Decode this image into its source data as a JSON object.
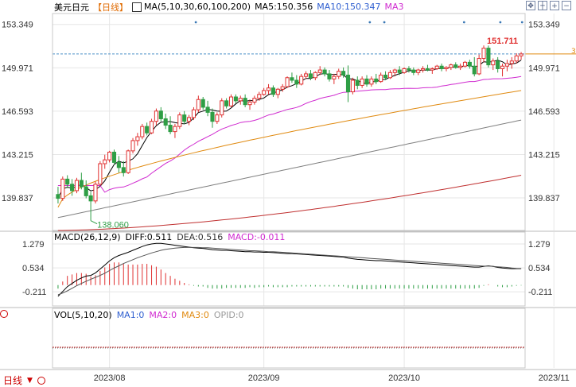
{
  "header": {
    "symbol": "美元日元",
    "period_tag": "【日线】",
    "ma_label": "MA(5,10,30,60,100,200)",
    "ma5": "MA5:150.356",
    "ma10": "MA10:150.347",
    "ma3": "MA3"
  },
  "toolbar": {
    "icons": [
      "move-icon",
      "crosshair-icon",
      "zoom-in-icon",
      "zoom-out-icon"
    ],
    "glyphs": [
      "✥",
      "┼",
      "+",
      "−"
    ]
  },
  "macd_legend": {
    "label": "MACD(26,12,9)",
    "diff": "DIFF:0.511",
    "dea": "DEA:0.516",
    "macd": "MACD:-0.011"
  },
  "vol_legend": {
    "label": "VOL(5,10,20)",
    "ma1": "MA1:0",
    "ma2": "MA2:0",
    "ma3": "MA3:0",
    "opid": "OPID:0"
  },
  "period_switch": {
    "label": "日线",
    "arrow": "▼"
  },
  "colors": {
    "up": "#e03030",
    "down": "#2e9e45",
    "ma5": "#000000",
    "ma30": "#d02bd0",
    "ma60": "#e08a10",
    "ma100": "#808080",
    "ma200": "#c03030",
    "grid": "#e6e6e6",
    "axis": "#333333",
    "current": "#4a90c8"
  },
  "chart_data": [
    {
      "type": "candlestick",
      "title": "",
      "y_ticks": [
        "153.349",
        "149.971",
        "146.593",
        "143.215",
        "139.837"
      ],
      "y_tick_values": [
        153.349,
        149.971,
        146.593,
        143.215,
        139.837
      ],
      "ylim": [
        137.3,
        154.2
      ],
      "x_ticks": [
        "2023/08",
        "2023/09",
        "2023/10",
        "2023/11"
      ],
      "x_tick_index": [
        11,
        44,
        74,
        106
      ],
      "annotations": {
        "high": "151.711",
        "low": "138.060",
        "current_price": 151.05,
        "current_label": "3"
      },
      "ohlc": [
        [
          140.1,
          140.7,
          139.4,
          139.8
        ],
        [
          139.8,
          141.5,
          139.6,
          141.3
        ],
        [
          141.3,
          141.6,
          140.6,
          140.9
        ],
        [
          140.9,
          141.3,
          140.0,
          140.4
        ],
        [
          140.4,
          141.4,
          140.2,
          141.2
        ],
        [
          141.2,
          141.8,
          140.5,
          140.7
        ],
        [
          140.7,
          141.2,
          139.8,
          140.0
        ],
        [
          140.0,
          140.3,
          138.06,
          139.6
        ],
        [
          139.6,
          141.1,
          139.4,
          140.9
        ],
        [
          140.9,
          142.7,
          140.8,
          142.5
        ],
        [
          142.5,
          143.2,
          142.1,
          142.8
        ],
        [
          142.8,
          143.5,
          142.6,
          143.4
        ],
        [
          143.4,
          143.6,
          142.4,
          142.6
        ],
        [
          142.6,
          143.1,
          141.8,
          142.2
        ],
        [
          142.2,
          142.7,
          141.5,
          141.8
        ],
        [
          141.8,
          143.6,
          141.7,
          143.5
        ],
        [
          143.5,
          144.5,
          143.3,
          144.3
        ],
        [
          144.3,
          144.9,
          143.9,
          144.6
        ],
        [
          144.6,
          145.6,
          144.4,
          145.4
        ],
        [
          145.4,
          145.7,
          144.7,
          144.9
        ],
        [
          144.9,
          146.0,
          144.8,
          145.8
        ],
        [
          145.8,
          146.8,
          145.5,
          146.6
        ],
        [
          146.6,
          146.9,
          145.8,
          146.0
        ],
        [
          146.0,
          146.4,
          145.2,
          145.5
        ],
        [
          145.5,
          146.2,
          144.8,
          145.0
        ],
        [
          145.0,
          145.6,
          144.5,
          145.4
        ],
        [
          145.4,
          146.5,
          145.2,
          146.3
        ],
        [
          146.3,
          146.6,
          145.6,
          145.8
        ],
        [
          145.8,
          146.3,
          145.5,
          146.1
        ],
        [
          146.1,
          146.9,
          145.9,
          146.7
        ],
        [
          146.7,
          147.8,
          146.5,
          147.5
        ],
        [
          147.5,
          147.7,
          146.7,
          146.9
        ],
        [
          146.9,
          147.4,
          146.2,
          146.5
        ],
        [
          146.5,
          146.8,
          145.3,
          145.8
        ],
        [
          145.8,
          146.5,
          145.6,
          146.3
        ],
        [
          146.3,
          147.6,
          146.1,
          147.4
        ],
        [
          147.4,
          147.6,
          146.8,
          147.0
        ],
        [
          147.0,
          147.9,
          146.9,
          147.7
        ],
        [
          147.7,
          147.9,
          147.2,
          147.4
        ],
        [
          147.4,
          147.8,
          147.1,
          147.6
        ],
        [
          147.6,
          147.9,
          146.9,
          147.1
        ],
        [
          147.1,
          147.5,
          146.7,
          147.3
        ],
        [
          147.3,
          147.8,
          147.1,
          147.6
        ],
        [
          147.6,
          148.1,
          147.4,
          147.9
        ],
        [
          147.9,
          148.4,
          147.8,
          148.2
        ],
        [
          148.2,
          148.7,
          147.9,
          148.4
        ],
        [
          148.4,
          148.6,
          147.7,
          147.9
        ],
        [
          147.9,
          148.4,
          147.6,
          148.3
        ],
        [
          148.3,
          148.7,
          148.1,
          148.5
        ],
        [
          148.5,
          149.3,
          148.4,
          149.2
        ],
        [
          149.2,
          149.6,
          148.8,
          149.0
        ],
        [
          149.0,
          149.4,
          148.4,
          148.7
        ],
        [
          148.7,
          149.5,
          148.6,
          149.3
        ],
        [
          149.3,
          149.7,
          149.1,
          149.5
        ],
        [
          149.5,
          149.8,
          149.0,
          149.2
        ],
        [
          149.2,
          149.7,
          149.0,
          149.6
        ],
        [
          149.6,
          150.1,
          149.4,
          149.8
        ],
        [
          149.8,
          150.0,
          149.3,
          149.5
        ],
        [
          149.5,
          149.8,
          148.9,
          149.1
        ],
        [
          149.1,
          149.5,
          148.7,
          149.3
        ],
        [
          149.3,
          149.9,
          149.1,
          149.7
        ],
        [
          149.7,
          150.0,
          149.2,
          149.4
        ],
        [
          149.4,
          150.15,
          147.3,
          148.1
        ],
        [
          148.1,
          149.2,
          147.9,
          149.0
        ],
        [
          149.0,
          149.3,
          148.3,
          148.6
        ],
        [
          148.6,
          149.3,
          148.4,
          149.1
        ],
        [
          149.1,
          149.4,
          148.5,
          148.7
        ],
        [
          148.7,
          149.3,
          148.5,
          149.1
        ],
        [
          149.1,
          149.5,
          148.7,
          148.9
        ],
        [
          148.9,
          149.6,
          148.8,
          149.4
        ],
        [
          149.4,
          149.7,
          149.0,
          149.2
        ],
        [
          149.2,
          149.8,
          149.1,
          149.6
        ],
        [
          149.6,
          149.9,
          149.3,
          149.8
        ],
        [
          149.8,
          150.1,
          149.4,
          149.6
        ],
        [
          149.6,
          150.0,
          149.5,
          149.9
        ],
        [
          149.9,
          150.1,
          149.6,
          149.8
        ],
        [
          149.8,
          150.0,
          149.4,
          149.6
        ],
        [
          149.6,
          149.9,
          149.4,
          149.8
        ],
        [
          149.8,
          150.1,
          149.6,
          149.9
        ],
        [
          149.9,
          150.2,
          149.7,
          149.8
        ],
        [
          149.8,
          150.0,
          149.5,
          149.9
        ],
        [
          149.9,
          150.2,
          149.8,
          150.1
        ],
        [
          150.1,
          150.3,
          149.7,
          149.9
        ],
        [
          149.9,
          150.1,
          149.7,
          150.0
        ],
        [
          150.0,
          150.3,
          149.8,
          150.2
        ],
        [
          150.2,
          150.4,
          149.9,
          150.0
        ],
        [
          150.0,
          150.3,
          149.8,
          150.1
        ],
        [
          150.1,
          150.5,
          150.0,
          150.4
        ],
        [
          150.4,
          150.6,
          149.9,
          150.1
        ],
        [
          150.1,
          150.8,
          149.3,
          149.5
        ],
        [
          149.5,
          151.0,
          149.4,
          150.7
        ],
        [
          150.7,
          151.711,
          150.4,
          151.5
        ],
        [
          151.5,
          151.7,
          150.0,
          150.2
        ],
        [
          150.2,
          150.7,
          149.8,
          150.5
        ],
        [
          150.5,
          150.8,
          149.6,
          149.9
        ],
        [
          149.9,
          150.3,
          149.3,
          150.1
        ],
        [
          150.1,
          150.6,
          149.7,
          150.3
        ],
        [
          150.3,
          150.8,
          149.9,
          150.5
        ],
        [
          150.5,
          151.1,
          150.3,
          150.9
        ],
        [
          150.9,
          151.2,
          150.6,
          151.05
        ]
      ],
      "moving_averages": [
        {
          "name": "MA5",
          "color": "#000000",
          "start": [
            0,
            140.2
          ],
          "end": [
            99,
            150.35
          ]
        },
        {
          "name": "MA30",
          "color": "#d02bd0",
          "start": [
            0,
            140.8
          ],
          "end": [
            99,
            149.6
          ]
        },
        {
          "name": "MA60",
          "color": "#e08a10",
          "start": [
            0,
            139.1
          ],
          "end": [
            99,
            148.2
          ]
        },
        {
          "name": "MA100",
          "color": "#808080",
          "start": [
            0,
            138.3
          ],
          "end": [
            99,
            145.9
          ]
        },
        {
          "name": "MA200",
          "color": "#c03030",
          "start": [
            0,
            137.3
          ],
          "end": [
            99,
            141.6
          ]
        }
      ]
    },
    {
      "type": "macd",
      "y_ticks": [
        "1.279",
        "0.534",
        "-0.211"
      ],
      "y_tick_values": [
        1.279,
        0.534,
        -0.211
      ],
      "ylim": [
        -0.65,
        1.65
      ],
      "diff": [
        -0.35,
        -0.2,
        -0.05,
        0.05,
        0.15,
        0.22,
        0.28,
        0.3,
        0.38,
        0.5,
        0.62,
        0.75,
        0.85,
        0.92,
        0.97,
        1.02,
        1.08,
        1.14,
        1.2,
        1.25,
        1.28,
        1.3,
        1.3,
        1.28,
        1.26,
        1.24,
        1.22,
        1.2,
        1.18,
        1.16,
        1.15,
        1.14,
        1.12,
        1.1,
        1.09,
        1.08,
        1.08,
        1.07,
        1.06,
        1.05,
        1.04,
        1.04,
        1.03,
        1.03,
        1.02,
        1.02,
        1.01,
        1.0,
        0.99,
        0.98,
        0.98,
        0.97,
        0.96,
        0.95,
        0.94,
        0.93,
        0.92,
        0.91,
        0.9,
        0.89,
        0.88,
        0.87,
        0.84,
        0.82,
        0.8,
        0.79,
        0.78,
        0.77,
        0.76,
        0.76,
        0.75,
        0.74,
        0.73,
        0.72,
        0.71,
        0.7,
        0.69,
        0.68,
        0.67,
        0.66,
        0.65,
        0.64,
        0.63,
        0.62,
        0.61,
        0.6,
        0.59,
        0.58,
        0.57,
        0.56,
        0.56,
        0.58,
        0.6,
        0.58,
        0.55,
        0.53,
        0.52,
        0.51,
        0.51,
        0.51
      ],
      "dea": [
        -0.3,
        -0.25,
        -0.18,
        -0.1,
        -0.02,
        0.05,
        0.12,
        0.18,
        0.24,
        0.3,
        0.37,
        0.45,
        0.53,
        0.6,
        0.67,
        0.73,
        0.79,
        0.85,
        0.9,
        0.95,
        1.0,
        1.04,
        1.08,
        1.11,
        1.13,
        1.15,
        1.16,
        1.17,
        1.17,
        1.17,
        1.17,
        1.16,
        1.16,
        1.15,
        1.14,
        1.13,
        1.12,
        1.11,
        1.1,
        1.09,
        1.08,
        1.07,
        1.07,
        1.06,
        1.05,
        1.04,
        1.04,
        1.03,
        1.02,
        1.01,
        1.0,
        0.99,
        0.98,
        0.97,
        0.96,
        0.95,
        0.94,
        0.93,
        0.92,
        0.91,
        0.9,
        0.89,
        0.88,
        0.87,
        0.86,
        0.85,
        0.84,
        0.83,
        0.82,
        0.81,
        0.8,
        0.79,
        0.78,
        0.77,
        0.76,
        0.75,
        0.74,
        0.73,
        0.72,
        0.71,
        0.7,
        0.69,
        0.68,
        0.67,
        0.66,
        0.65,
        0.64,
        0.63,
        0.62,
        0.61,
        0.6,
        0.59,
        0.59,
        0.58,
        0.57,
        0.56,
        0.55,
        0.53,
        0.52,
        0.516
      ]
    },
    {
      "type": "volume",
      "values": []
    }
  ]
}
